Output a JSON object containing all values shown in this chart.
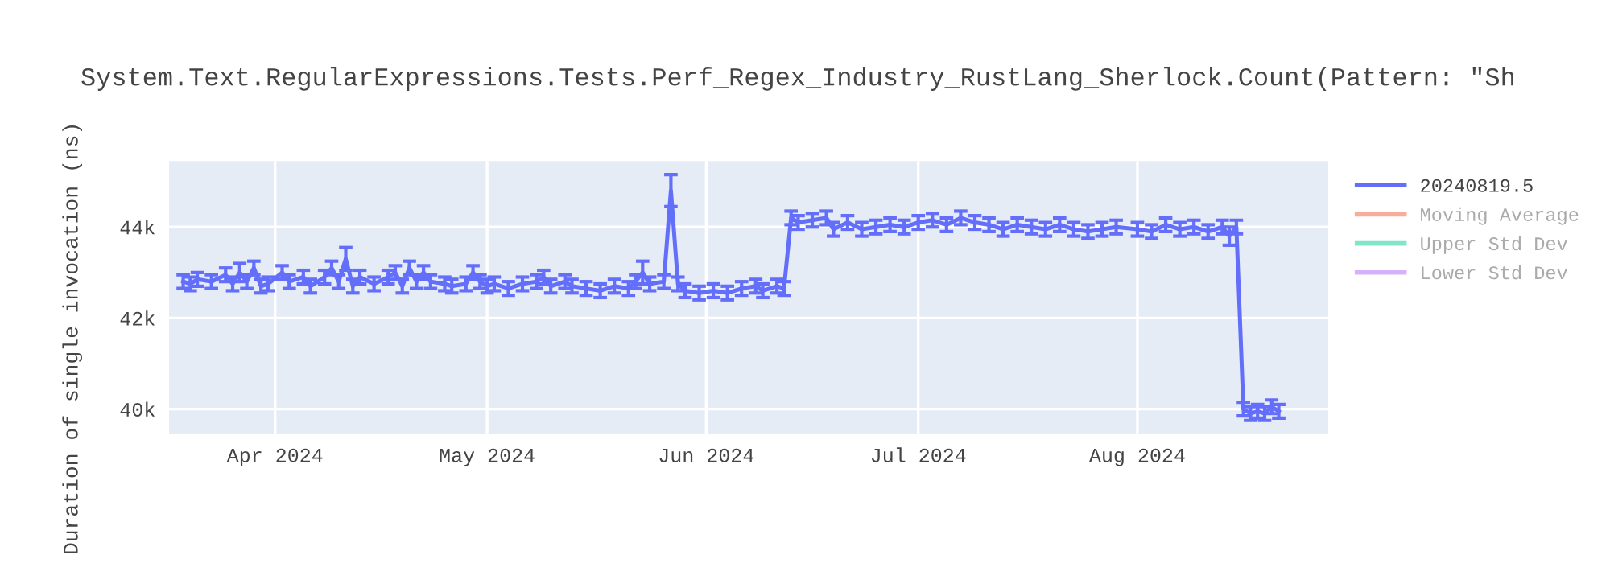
{
  "chart_data": {
    "type": "line",
    "title": "System.Text.RegularExpressions.Tests.Perf_Regex_Industry_RustLang_Sherlock.Count(Pattern: \"Sh",
    "ylabel": "Duration of single invocation (ns)",
    "x": [
      "2024-03-19",
      "2024-03-20",
      "2024-03-21",
      "2024-03-23",
      "2024-03-25",
      "2024-03-26",
      "2024-03-27",
      "2024-03-28",
      "2024-03-29",
      "2024-03-30",
      "2024-03-31",
      "2024-04-02",
      "2024-04-03",
      "2024-04-05",
      "2024-04-06",
      "2024-04-08",
      "2024-04-09",
      "2024-04-10",
      "2024-04-11",
      "2024-04-12",
      "2024-04-13",
      "2024-04-15",
      "2024-04-17",
      "2024-04-18",
      "2024-04-19",
      "2024-04-20",
      "2024-04-21",
      "2024-04-22",
      "2024-04-23",
      "2024-04-25",
      "2024-04-26",
      "2024-04-28",
      "2024-04-29",
      "2024-04-30",
      "2024-05-01",
      "2024-05-02",
      "2024-05-04",
      "2024-05-06",
      "2024-05-08",
      "2024-05-09",
      "2024-05-10",
      "2024-05-12",
      "2024-05-13",
      "2024-05-15",
      "2024-05-17",
      "2024-05-19",
      "2024-05-21",
      "2024-05-22",
      "2024-05-23",
      "2024-05-24",
      "2024-05-26",
      "2024-05-27",
      "2024-05-28",
      "2024-05-29",
      "2024-05-31",
      "2024-06-02",
      "2024-06-04",
      "2024-06-06",
      "2024-06-08",
      "2024-06-09",
      "2024-06-11",
      "2024-06-12",
      "2024-06-13",
      "2024-06-14",
      "2024-06-16",
      "2024-06-18",
      "2024-06-19",
      "2024-06-21",
      "2024-06-23",
      "2024-06-25",
      "2024-06-27",
      "2024-06-29",
      "2024-07-01",
      "2024-07-03",
      "2024-07-05",
      "2024-07-07",
      "2024-07-09",
      "2024-07-11",
      "2024-07-13",
      "2024-07-15",
      "2024-07-17",
      "2024-07-19",
      "2024-07-21",
      "2024-07-23",
      "2024-07-25",
      "2024-07-27",
      "2024-07-29",
      "2024-08-01",
      "2024-08-03",
      "2024-08-05",
      "2024-08-07",
      "2024-08-09",
      "2024-08-11",
      "2024-08-13",
      "2024-08-14",
      "2024-08-15",
      "2024-08-16",
      "2024-08-17",
      "2024-08-18",
      "2024-08-19",
      "2024-08-20",
      "2024-08-21"
    ],
    "series": [
      {
        "name": "20240819.5",
        "color": "#636efa",
        "values": [
          42800,
          42750,
          42850,
          42800,
          42950,
          42750,
          43000,
          42800,
          43100,
          42700,
          42750,
          43000,
          42800,
          42900,
          42700,
          42900,
          43100,
          42800,
          43300,
          42700,
          42900,
          42750,
          42900,
          43000,
          42700,
          43100,
          42800,
          43000,
          42800,
          42750,
          42700,
          42750,
          43000,
          42800,
          42700,
          42750,
          42650,
          42750,
          42800,
          42900,
          42700,
          42800,
          42700,
          42650,
          42600,
          42700,
          42650,
          42800,
          43000,
          42750,
          42800,
          44800,
          42750,
          42600,
          42550,
          42600,
          42550,
          42650,
          42700,
          42600,
          42700,
          42650,
          44200,
          44100,
          44150,
          44200,
          43950,
          44100,
          43950,
          44000,
          44050,
          44000,
          44100,
          44150,
          44050,
          44200,
          44100,
          44050,
          43950,
          44050,
          44000,
          43950,
          44050,
          43950,
          43900,
          43950,
          44000,
          43950,
          43900,
          44050,
          43950,
          44000,
          43900,
          44000,
          43800,
          44000,
          40000,
          39900,
          39950,
          39900,
          40050,
          39950
        ],
        "errors": [
          150,
          150,
          150,
          150,
          150,
          150,
          200,
          150,
          150,
          150,
          150,
          150,
          150,
          150,
          150,
          150,
          150,
          150,
          250,
          150,
          150,
          150,
          150,
          150,
          150,
          150,
          150,
          150,
          150,
          150,
          150,
          150,
          150,
          150,
          150,
          150,
          150,
          150,
          150,
          150,
          150,
          150,
          150,
          150,
          150,
          150,
          150,
          150,
          250,
          150,
          150,
          350,
          150,
          150,
          150,
          150,
          150,
          150,
          150,
          150,
          150,
          150,
          150,
          150,
          150,
          150,
          150,
          150,
          150,
          150,
          150,
          150,
          150,
          150,
          150,
          150,
          150,
          150,
          150,
          150,
          150,
          150,
          150,
          150,
          150,
          150,
          150,
          150,
          150,
          150,
          150,
          150,
          150,
          150,
          200,
          150,
          150,
          150,
          150,
          150,
          150,
          150
        ]
      },
      {
        "name": "Moving Average",
        "color": "#f7ad99",
        "values": [
          null,
          null,
          null,
          null,
          null,
          null,
          null,
          null,
          null,
          null,
          null,
          null,
          null,
          null,
          null,
          null,
          null,
          null,
          null,
          null,
          null,
          null,
          null,
          null,
          null,
          null,
          null,
          null,
          null,
          null,
          null,
          null,
          null,
          null,
          null,
          null,
          null,
          null,
          null,
          null,
          null,
          null,
          null,
          null,
          null,
          null,
          null,
          null,
          null,
          null,
          null,
          null,
          null,
          null,
          null,
          null,
          null,
          null,
          null,
          null,
          null,
          null,
          null,
          null,
          null,
          null,
          null,
          null,
          null,
          null,
          null,
          null,
          null,
          null,
          null,
          null,
          null,
          null,
          null,
          null,
          null,
          null,
          null,
          null,
          null,
          null,
          null,
          null,
          null,
          null,
          null,
          null,
          null,
          null,
          null,
          null,
          null,
          null,
          null,
          null,
          null,
          null
        ]
      },
      {
        "name": "Upper Std Dev",
        "color": "#80e6ca",
        "values": [
          null,
          null,
          null,
          null,
          null,
          null,
          null,
          null,
          null,
          null,
          null,
          null,
          null,
          null,
          null,
          null,
          null,
          null,
          null,
          null,
          null,
          null,
          null,
          null,
          null,
          null,
          null,
          null,
          null,
          null,
          null,
          null,
          null,
          null,
          null,
          null,
          null,
          null,
          null,
          null,
          null,
          null,
          null,
          null,
          null,
          null,
          null,
          null,
          null,
          null,
          null,
          null,
          null,
          null,
          null,
          null,
          null,
          null,
          null,
          null,
          null,
          null,
          null,
          null,
          null,
          null,
          null,
          null,
          null,
          null,
          null,
          null,
          null,
          null,
          null,
          null,
          null,
          null,
          null,
          null,
          null,
          null,
          null,
          null,
          null,
          null,
          null,
          null,
          null,
          null,
          null,
          null,
          null,
          null,
          null,
          null,
          null,
          null,
          null,
          null,
          null,
          null
        ]
      },
      {
        "name": "Lower Std Dev",
        "color": "#d5b1fd",
        "values": [
          null,
          null,
          null,
          null,
          null,
          null,
          null,
          null,
          null,
          null,
          null,
          null,
          null,
          null,
          null,
          null,
          null,
          null,
          null,
          null,
          null,
          null,
          null,
          null,
          null,
          null,
          null,
          null,
          null,
          null,
          null,
          null,
          null,
          null,
          null,
          null,
          null,
          null,
          null,
          null,
          null,
          null,
          null,
          null,
          null,
          null,
          null,
          null,
          null,
          null,
          null,
          null,
          null,
          null,
          null,
          null,
          null,
          null,
          null,
          null,
          null,
          null,
          null,
          null,
          null,
          null,
          null,
          null,
          null,
          null,
          null,
          null,
          null,
          null,
          null,
          null,
          null,
          null,
          null,
          null,
          null,
          null,
          null,
          null,
          null,
          null,
          null,
          null,
          null,
          null,
          null,
          null,
          null,
          null,
          null,
          null,
          null,
          null,
          null,
          null,
          null,
          null
        ]
      }
    ],
    "xlim": [
      "2024-03-17",
      "2024-08-28"
    ],
    "xticks": [
      {
        "value": "2024-04-01",
        "label": "Apr 2024"
      },
      {
        "value": "2024-05-01",
        "label": "May 2024"
      },
      {
        "value": "2024-06-01",
        "label": "Jun 2024"
      },
      {
        "value": "2024-07-01",
        "label": "Jul 2024"
      },
      {
        "value": "2024-08-01",
        "label": "Aug 2024"
      }
    ],
    "ylim": [
      39450,
      45450
    ],
    "yticks": [
      {
        "value": 40000,
        "label": "40k"
      },
      {
        "value": 42000,
        "label": "42k"
      },
      {
        "value": 44000,
        "label": "44k"
      }
    ],
    "grid": true,
    "legend": "top right",
    "marker": "none",
    "line_style": "solid"
  }
}
